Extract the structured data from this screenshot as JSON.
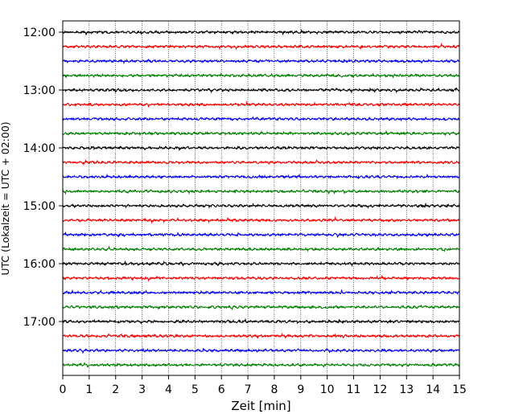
{
  "chart_data": {
    "type": "line",
    "title": "",
    "xlabel": "Zeit  [min]",
    "ylabel": "UTC (Lokalzeit = UTC + 02:00)",
    "xlim": [
      0,
      15
    ],
    "x_ticks": [
      "0",
      "1",
      "2",
      "3",
      "4",
      "5",
      "6",
      "7",
      "8",
      "9",
      "10",
      "11",
      "12",
      "13",
      "14",
      "15"
    ],
    "y_ticks": [
      "12:00",
      "13:00",
      "14:00",
      "15:00",
      "16:00",
      "17:00"
    ],
    "row_start_times": [
      "12:00",
      "12:15",
      "12:30",
      "12:45",
      "13:00",
      "13:15",
      "13:30",
      "13:45",
      "14:00",
      "14:15",
      "14:30",
      "14:45",
      "15:00",
      "15:15",
      "15:30",
      "15:45",
      "16:00",
      "16:15",
      "16:30",
      "16:45",
      "17:00",
      "17:15",
      "17:30",
      "17:45"
    ],
    "trace_colors": [
      "#000000",
      "#ff0000",
      "#0000ff",
      "#008000"
    ],
    "grid": "vertical dotted",
    "legend": "none"
  }
}
